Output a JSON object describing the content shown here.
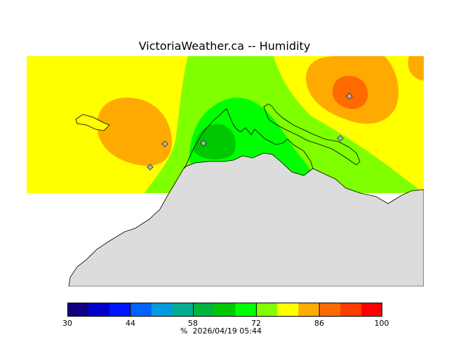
{
  "header": {
    "title": "VictoriaWeather.ca  --  Humidity"
  },
  "map": {
    "land_color": "#dcdcdc",
    "coast_color": "#000000",
    "station_marker_color": "#b0b0b0",
    "zones": [
      {
        "name": "zone-72-79",
        "color": "#ffff00"
      },
      {
        "name": "zone-65-72",
        "color": "#7fff00"
      },
      {
        "name": "zone-58-65",
        "color": "#00ff00"
      },
      {
        "name": "zone-51-58",
        "color": "#00c800"
      },
      {
        "name": "zone-79-86",
        "color": "#ffaa00"
      },
      {
        "name": "zone-86-93",
        "color": "#ff6a00"
      }
    ]
  },
  "legend": {
    "min": 30,
    "max": 100,
    "tick_labels": [
      "30",
      "44",
      "58",
      "72",
      "86",
      "100"
    ],
    "colors": [
      "#11007f",
      "#0000c8",
      "#0015ff",
      "#0063ff",
      "#009bdb",
      "#00ad8e",
      "#00b43c",
      "#00c800",
      "#00ff00",
      "#7fff00",
      "#ffff00",
      "#ffaa00",
      "#ff6a00",
      "#ff3c00",
      "#ff0000"
    ],
    "unit": "%",
    "timestamp": "2026/04/19 05:44"
  }
}
